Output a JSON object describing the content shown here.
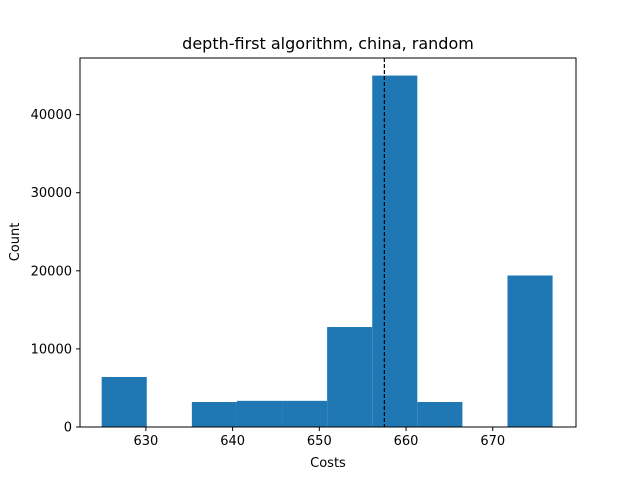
{
  "chart_data": {
    "type": "bar",
    "title": "depth-first algorithm, china, random",
    "xlabel": "Costs",
    "ylabel": "Count",
    "xlim": [
      622.4,
      679.6
    ],
    "ylim": [
      0,
      47250
    ],
    "grid": false,
    "bar_color": "#1f77b4",
    "bins": [
      {
        "x0": 624.9,
        "x1": 630.1,
        "count": 6400
      },
      {
        "x0": 630.1,
        "x1": 635.3,
        "count": 0
      },
      {
        "x0": 635.3,
        "x1": 640.5,
        "count": 3200
      },
      {
        "x0": 640.5,
        "x1": 645.7,
        "count": 3350
      },
      {
        "x0": 645.7,
        "x1": 650.9,
        "count": 3350
      },
      {
        "x0": 650.9,
        "x1": 656.1,
        "count": 12800
      },
      {
        "x0": 656.1,
        "x1": 661.3,
        "count": 45000
      },
      {
        "x0": 661.3,
        "x1": 666.5,
        "count": 3200
      },
      {
        "x0": 666.5,
        "x1": 671.7,
        "count": 0
      },
      {
        "x0": 671.7,
        "x1": 676.9,
        "count": 19400
      }
    ],
    "reference_line": {
      "x": 657.5,
      "style": "dashed",
      "color": "#000000"
    },
    "x_ticks": [
      "630",
      "640",
      "650",
      "660",
      "670"
    ],
    "x_tick_values": [
      630,
      640,
      650,
      660,
      670
    ],
    "y_ticks": [
      "0",
      "10000",
      "20000",
      "30000",
      "40000"
    ],
    "y_tick_values": [
      0,
      10000,
      20000,
      30000,
      40000
    ]
  }
}
